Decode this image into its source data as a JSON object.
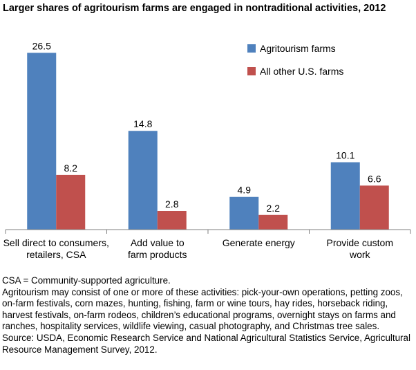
{
  "title": "Larger shares of agritourism farms are engaged in nontraditional activities, 2012",
  "chart_data": {
    "type": "bar",
    "categories": [
      [
        "Sell direct to consumers,",
        "retailers, CSA"
      ],
      [
        "Add value to",
        "farm products"
      ],
      [
        "Generate energy"
      ],
      [
        "Provide custom",
        "work"
      ]
    ],
    "series": [
      {
        "name": "Agritourism farms",
        "color": "#4f81bd",
        "values": [
          26.5,
          14.8,
          4.9,
          10.1
        ]
      },
      {
        "name": "All other U.S. farms",
        "color": "#c0504d",
        "values": [
          8.2,
          2.8,
          2.2,
          6.6
        ]
      }
    ],
    "ylim": [
      0,
      28.2
    ],
    "legend": "top-right",
    "grid": false
  },
  "notes": [
    "CSA = Community-supported agriculture.",
    "Agritourism may consist of one or more of these activities: pick-your-own operations, petting zoos, on-farm festivals, corn mazes, hunting, fishing, farm or wine tours, hay rides, horseback riding, harvest festivals, on-farm rodeos, children’s educational programs, overnight stays on farms and ranches, hospitality services, wildlife viewing, casual photography, and Christmas tree sales.",
    "Source: USDA, Economic Research Service and National Agricultural Statistics Service, Agricultural Resource Management Survey, 2012."
  ]
}
